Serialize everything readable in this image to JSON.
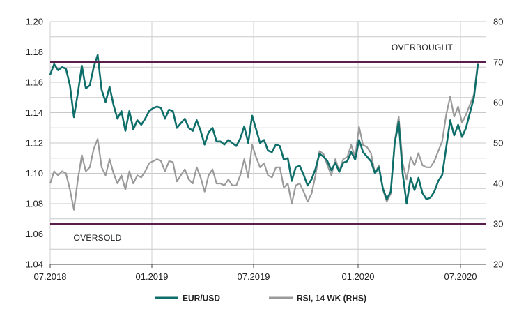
{
  "chart_data": {
    "type": "line",
    "x_ticks": [
      "07.2018",
      "01.2019",
      "07.2019",
      "01.2020",
      "07.2020"
    ],
    "y_left": {
      "ticks": [
        1.04,
        1.06,
        1.08,
        1.1,
        1.12,
        1.14,
        1.16,
        1.18,
        1.2
      ],
      "min": 1.04,
      "max": 1.2
    },
    "y_right": {
      "ticks": [
        20,
        30,
        40,
        50,
        60,
        70,
        80
      ],
      "min": 20,
      "max": 80
    },
    "grid": "horizontal",
    "thresholds": [
      {
        "label": "OVERBOUGHT",
        "rsi": 70
      },
      {
        "label": "OVERSOLD",
        "rsi": 30
      }
    ],
    "series": [
      {
        "name": "EUR/USD",
        "axis": "left",
        "color": "#0e6e6a",
        "values": [
          1.165,
          1.172,
          1.168,
          1.17,
          1.169,
          1.158,
          1.137,
          1.153,
          1.171,
          1.156,
          1.158,
          1.17,
          1.178,
          1.155,
          1.147,
          1.157,
          1.145,
          1.136,
          1.141,
          1.128,
          1.141,
          1.129,
          1.135,
          1.132,
          1.136,
          1.141,
          1.143,
          1.144,
          1.143,
          1.136,
          1.142,
          1.141,
          1.13,
          1.133,
          1.136,
          1.13,
          1.128,
          1.135,
          1.128,
          1.119,
          1.127,
          1.13,
          1.121,
          1.121,
          1.119,
          1.122,
          1.12,
          1.118,
          1.123,
          1.131,
          1.12,
          1.138,
          1.129,
          1.12,
          1.122,
          1.115,
          1.114,
          1.119,
          1.118,
          1.109,
          1.11,
          1.095,
          1.104,
          1.105,
          1.099,
          1.092,
          1.096,
          1.103,
          1.113,
          1.111,
          1.108,
          1.102,
          1.107,
          1.101,
          1.107,
          1.108,
          1.114,
          1.109,
          1.122,
          1.114,
          1.111,
          1.108,
          1.1,
          1.104,
          1.09,
          1.083,
          1.088,
          1.12,
          1.134,
          1.1,
          1.08,
          1.097,
          1.089,
          1.097,
          1.087,
          1.083,
          1.084,
          1.088,
          1.095,
          1.099,
          1.117,
          1.135,
          1.125,
          1.132,
          1.124,
          1.13,
          1.14,
          1.15,
          1.172
        ]
      },
      {
        "name": "RSI, 14 WK (RHS)",
        "axis": "right",
        "color": "#9a9a9a",
        "values": [
          40,
          43,
          42,
          43,
          42.5,
          38.5,
          33.5,
          41,
          47,
          43,
          44,
          48.5,
          51,
          44,
          42,
          46,
          42.5,
          40,
          42,
          38.5,
          43,
          40,
          42,
          41.5,
          43,
          45,
          45.5,
          46,
          45.5,
          43,
          45.5,
          45.3,
          40.5,
          42,
          43.5,
          41,
          40,
          44,
          41.5,
          38,
          42,
          43.5,
          40,
          40,
          39.5,
          41,
          39.5,
          39.5,
          42,
          46,
          41.5,
          49.5,
          46.5,
          44,
          45,
          42,
          41.5,
          44,
          44,
          39,
          40,
          35,
          39.5,
          40,
          38,
          35.5,
          37.5,
          42,
          48,
          47.3,
          44.5,
          42,
          46,
          43,
          46,
          46.5,
          49.5,
          46.5,
          54,
          49.5,
          49,
          47.5,
          42.5,
          44.5,
          38.5,
          35.5,
          37.5,
          50.5,
          56.5,
          45,
          41,
          46.5,
          44.5,
          47.5,
          44.5,
          44,
          44,
          45.5,
          48,
          50.5,
          57,
          61.5,
          56.5,
          59,
          55,
          57,
          59.5,
          62,
          70
        ]
      }
    ]
  }
}
